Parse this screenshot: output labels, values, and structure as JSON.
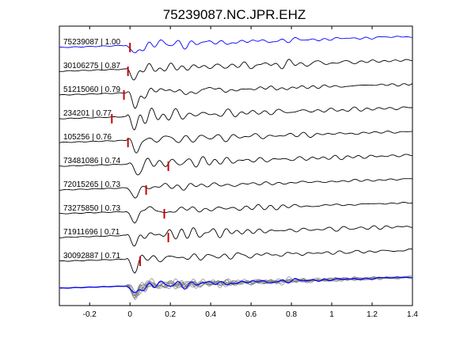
{
  "chart_data": {
    "type": "line",
    "title": "75239087.NC.JPR.EHZ",
    "xlabel": "",
    "ylabel": "",
    "xlim": [
      -0.35,
      1.4
    ],
    "xticks": [
      -0.2,
      0,
      0.2,
      0.4,
      0.6,
      0.8,
      1,
      1.2,
      1.4
    ],
    "xtick_labels": [
      "-0.2",
      "0",
      "0.2",
      "0.4",
      "0.6",
      "0.8",
      "1",
      "1.2",
      "1.4"
    ],
    "grid": false,
    "traces": [
      {
        "label": "75239087 | 1.00",
        "event_id": "75239087",
        "correlation": 1.0,
        "pick_time": 0.0,
        "color": "#0000ff"
      },
      {
        "label": "30106275 | 0.87",
        "event_id": "30106275",
        "correlation": 0.87,
        "pick_time": -0.01,
        "color": "#000000"
      },
      {
        "label": "51215060 | 0.79",
        "event_id": "51215060",
        "correlation": 0.79,
        "pick_time": -0.03,
        "color": "#000000"
      },
      {
        "label": "234201 | 0.77",
        "event_id": "234201",
        "correlation": 0.77,
        "pick_time": -0.09,
        "color": "#000000"
      },
      {
        "label": "105256 | 0.76",
        "event_id": "105256",
        "correlation": 0.76,
        "pick_time": -0.01,
        "color": "#000000"
      },
      {
        "label": "73481086 | 0.74",
        "event_id": "73481086",
        "correlation": 0.74,
        "pick_time": 0.19,
        "color": "#000000"
      },
      {
        "label": "72015265 | 0.73",
        "event_id": "72015265",
        "correlation": 0.73,
        "pick_time": 0.08,
        "color": "#000000"
      },
      {
        "label": "73275850 | 0.73",
        "event_id": "73275850",
        "correlation": 0.73,
        "pick_time": 0.17,
        "color": "#000000"
      },
      {
        "label": "71911696 | 0.71",
        "event_id": "71911696",
        "correlation": 0.71,
        "pick_time": 0.19,
        "color": "#000000"
      },
      {
        "label": "30092887 | 0.71",
        "event_id": "30092887",
        "correlation": 0.71,
        "pick_time": 0.05,
        "color": "#000000"
      }
    ],
    "stack": {
      "reference_color": "#0000ff",
      "overlay_color": "#808080"
    },
    "pick_color": "#cc0000"
  }
}
